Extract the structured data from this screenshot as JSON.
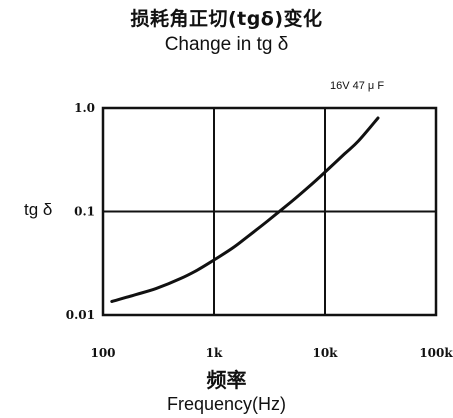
{
  "chart_data": {
    "type": "line",
    "title": "损耗角正切(tgδ)变化",
    "subtitle": "Change in tg δ",
    "annotation": "16V 47 μ F",
    "ylabel": "tg δ",
    "xlabel_cn": "频率",
    "xlabel": "Frequency(Hz)",
    "x_scale": "log",
    "y_scale": "log",
    "xlim": [
      100,
      100000
    ],
    "ylim": [
      0.01,
      1.0
    ],
    "grid": true,
    "x_ticks": [
      {
        "value": 100,
        "label": "100"
      },
      {
        "value": 1000,
        "label": "1k"
      },
      {
        "value": 10000,
        "label": "10k"
      },
      {
        "value": 100000,
        "label": "100k"
      }
    ],
    "y_ticks": [
      {
        "value": 0.01,
        "label": "0.01"
      },
      {
        "value": 0.1,
        "label": "0.1"
      },
      {
        "value": 1.0,
        "label": "1.0"
      }
    ],
    "series": [
      {
        "x": [
          120,
          200,
          300,
          500,
          700,
          1000,
          1500,
          2000,
          3000,
          5000,
          7000,
          10000,
          15000,
          20000,
          30000
        ],
        "y": [
          0.0135,
          0.0158,
          0.018,
          0.0225,
          0.027,
          0.034,
          0.045,
          0.057,
          0.08,
          0.125,
          0.17,
          0.24,
          0.36,
          0.48,
          0.8
        ]
      }
    ]
  }
}
